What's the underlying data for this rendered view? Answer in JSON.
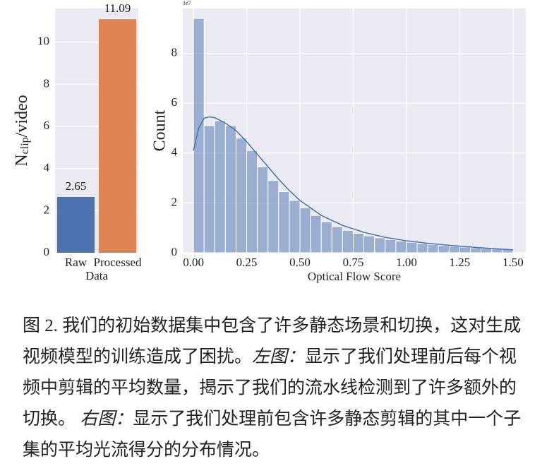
{
  "chart_data": [
    {
      "type": "bar",
      "categories": [
        "Raw",
        "Processed"
      ],
      "values": [
        2.65,
        11.09
      ],
      "colors": [
        "#4c72b0",
        "#dd8452"
      ],
      "xlabel": "Data",
      "ylabel": [
        "N",
        "clip",
        "/video"
      ],
      "ylim": [
        0,
        11.6
      ],
      "yticks": [
        0,
        2,
        4,
        6,
        8,
        10
      ],
      "grid": true
    },
    {
      "type": "histogram",
      "bins": [
        0,
        0.05,
        0.1,
        0.15,
        0.2,
        0.25,
        0.3,
        0.35,
        0.4,
        0.45,
        0.5,
        0.55,
        0.6,
        0.65,
        0.7,
        0.75,
        0.8,
        0.85,
        0.9,
        0.95,
        1.0,
        1.05,
        1.1,
        1.15,
        1.2,
        1.25,
        1.3,
        1.35,
        1.4,
        1.45,
        1.5
      ],
      "values": [
        9.4,
        5.1,
        5.3,
        5.1,
        4.6,
        4.1,
        3.45,
        2.9,
        2.45,
        2.1,
        1.8,
        1.5,
        1.25,
        1.05,
        0.9,
        0.78,
        0.68,
        0.6,
        0.53,
        0.47,
        0.42,
        0.37,
        0.33,
        0.29,
        0.26,
        0.23,
        0.2,
        0.18,
        0.16,
        0.14
      ],
      "color": "#4c72b0",
      "kde": {
        "x": [
          0,
          0.025,
          0.05,
          0.075,
          0.1,
          0.15,
          0.2,
          0.25,
          0.3,
          0.35,
          0.4,
          0.45,
          0.5,
          0.6,
          0.7,
          0.8,
          0.9,
          1.0,
          1.1,
          1.2,
          1.3,
          1.4,
          1.5
        ],
        "values": [
          4.1,
          5.0,
          5.4,
          5.45,
          5.42,
          5.2,
          4.9,
          4.45,
          3.95,
          3.45,
          2.95,
          2.5,
          2.1,
          1.5,
          1.1,
          0.82,
          0.62,
          0.48,
          0.38,
          0.3,
          0.23,
          0.17,
          0.12
        ]
      },
      "xlabel": "Optical Flow Score",
      "ylabel": "Count",
      "y_offset_label": "1e7",
      "xlim": [
        -0.05,
        1.56
      ],
      "ylim": [
        0,
        9.8
      ],
      "xticks": [
        {
          "value": 0,
          "label": "0.00"
        },
        {
          "value": 0.25,
          "label": "0.25"
        },
        {
          "value": 0.5,
          "label": "0.50"
        },
        {
          "value": 0.75,
          "label": "0.75"
        },
        {
          "value": 1,
          "label": "1.00"
        },
        {
          "value": 1.25,
          "label": "1.25"
        },
        {
          "value": 1.5,
          "label": "1.50"
        }
      ],
      "yticks": [
        0,
        2,
        4,
        6,
        8
      ],
      "grid": true
    }
  ],
  "caption": [
    "图 2. 我们的初始数据集中包含了许多静态场景和切换，这对生成视频模型的训练造成了困扰。",
    "左图：",
    "显示了我们处理前后每个视频中剪辑的平均数量，揭示了我们的流水线检测到了许多额外的切换。",
    "右图：",
    "显示了我们处理前包含许多静态剪辑的其中一个子集的平均光流得分的分布情况。"
  ]
}
